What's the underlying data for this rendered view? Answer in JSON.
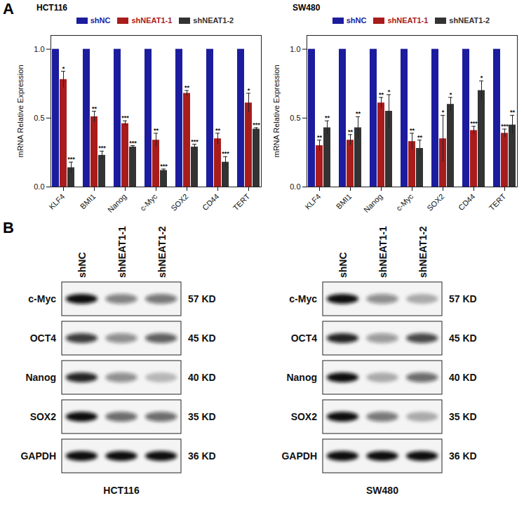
{
  "panel_labels": [
    "A",
    "B"
  ],
  "chart_data": [
    {
      "type": "bar",
      "title": "HCT116",
      "ylabel": "mRNA Relative Expression",
      "categories": [
        "KLF4",
        "BMI1",
        "Nanog",
        "c-Myc",
        "SOX2",
        "CD44",
        "TERT"
      ],
      "ylim": [
        0,
        1.1
      ],
      "yticks": [
        {
          "value": 0,
          "label": "0.0"
        },
        {
          "value": 0.5,
          "label": "0.5"
        },
        {
          "value": 1,
          "label": "1.0"
        }
      ],
      "legend": "top",
      "grid": false,
      "series": [
        {
          "name": "shNC",
          "color": "#1c1c9e",
          "values": [
            1,
            1,
            1,
            1,
            1,
            1,
            1
          ]
        },
        {
          "name": "shNEAT1-1",
          "color": "#a81c1c",
          "values": [
            0.78,
            0.51,
            0.46,
            0.34,
            0.68,
            0.35,
            0.61
          ],
          "errors": [
            0.06,
            0.04,
            0.02,
            0.05,
            0.02,
            0.04,
            0.07
          ],
          "significance": [
            "*",
            "**",
            "***",
            "**",
            "**",
            "**",
            "*"
          ]
        },
        {
          "name": "shNEAT1-2",
          "color": "#333333",
          "values": [
            0.14,
            0.23,
            0.29,
            0.12,
            0.29,
            0.18,
            0.42
          ],
          "errors": [
            0.04,
            0.03,
            0.01,
            0.01,
            0.02,
            0.04,
            0.01
          ],
          "significance": [
            "***",
            "***",
            "***",
            "***",
            "***",
            "***",
            "***"
          ]
        }
      ]
    },
    {
      "type": "bar",
      "title": "SW480",
      "ylabel": "mRNA Relative Expression",
      "categories": [
        "KLF4",
        "BMI1",
        "Nanog",
        "c-Myc",
        "SOX2",
        "CD44",
        "TERT"
      ],
      "ylim": [
        0,
        1.1
      ],
      "yticks": [
        {
          "value": 0,
          "label": "0.0"
        },
        {
          "value": 0.5,
          "label": "0.5"
        },
        {
          "value": 1,
          "label": "1.0"
        }
      ],
      "legend": "top",
      "grid": false,
      "series": [
        {
          "name": "shNC",
          "color": "#1c1c9e",
          "values": [
            1,
            1,
            1,
            1,
            1,
            1,
            1
          ]
        },
        {
          "name": "shNEAT1-1",
          "color": "#a81c1c",
          "values": [
            0.3,
            0.34,
            0.61,
            0.33,
            0.35,
            0.41,
            0.39
          ],
          "errors": [
            0.04,
            0.04,
            0.04,
            0.06,
            0.17,
            0.03,
            0.03
          ],
          "significance": [
            "**",
            "**",
            "**",
            "**",
            "*",
            "***",
            "***"
          ]
        },
        {
          "name": "shNEAT1-2",
          "color": "#333333",
          "values": [
            0.43,
            0.43,
            0.55,
            0.28,
            0.6,
            0.7,
            0.45
          ],
          "errors": [
            0.05,
            0.08,
            0.12,
            0.06,
            0.05,
            0.07,
            0.07
          ],
          "significance": [
            "**",
            "**",
            "*",
            "**",
            "*",
            "*",
            "**"
          ]
        }
      ]
    }
  ],
  "blots": [
    {
      "cell_line": "HCT116",
      "lanes": [
        "shNC",
        "shNEAT1-1",
        "shNEAT1-2"
      ],
      "rows": [
        {
          "protein": "c-Myc",
          "size": "57 KD",
          "intensity": [
            1,
            0.5,
            0.55
          ]
        },
        {
          "protein": "OCT4",
          "size": "45 KD",
          "intensity": [
            0.8,
            0.45,
            0.65
          ]
        },
        {
          "protein": "Nanog",
          "size": "40 KD",
          "intensity": [
            0.9,
            0.45,
            0.25
          ]
        },
        {
          "protein": "SOX2",
          "size": "35 KD",
          "intensity": [
            1,
            0.6,
            0.6
          ]
        },
        {
          "protein": "GAPDH",
          "size": "36 KD",
          "intensity": [
            1,
            1,
            1
          ]
        }
      ]
    },
    {
      "cell_line": "SW480",
      "lanes": [
        "shNC",
        "shNEAT1-1",
        "shNEAT1-2"
      ],
      "rows": [
        {
          "protein": "c-Myc",
          "size": "57 KD",
          "intensity": [
            1,
            0.45,
            0.3
          ]
        },
        {
          "protein": "OCT4",
          "size": "45 KD",
          "intensity": [
            0.9,
            0.4,
            0.75
          ]
        },
        {
          "protein": "Nanog",
          "size": "40 KD",
          "intensity": [
            1,
            0.3,
            0.6
          ]
        },
        {
          "protein": "SOX2",
          "size": "35 KD",
          "intensity": [
            1,
            0.55,
            0.3
          ]
        },
        {
          "protein": "GAPDH",
          "size": "36 KD",
          "intensity": [
            1,
            1,
            1
          ]
        }
      ]
    }
  ]
}
